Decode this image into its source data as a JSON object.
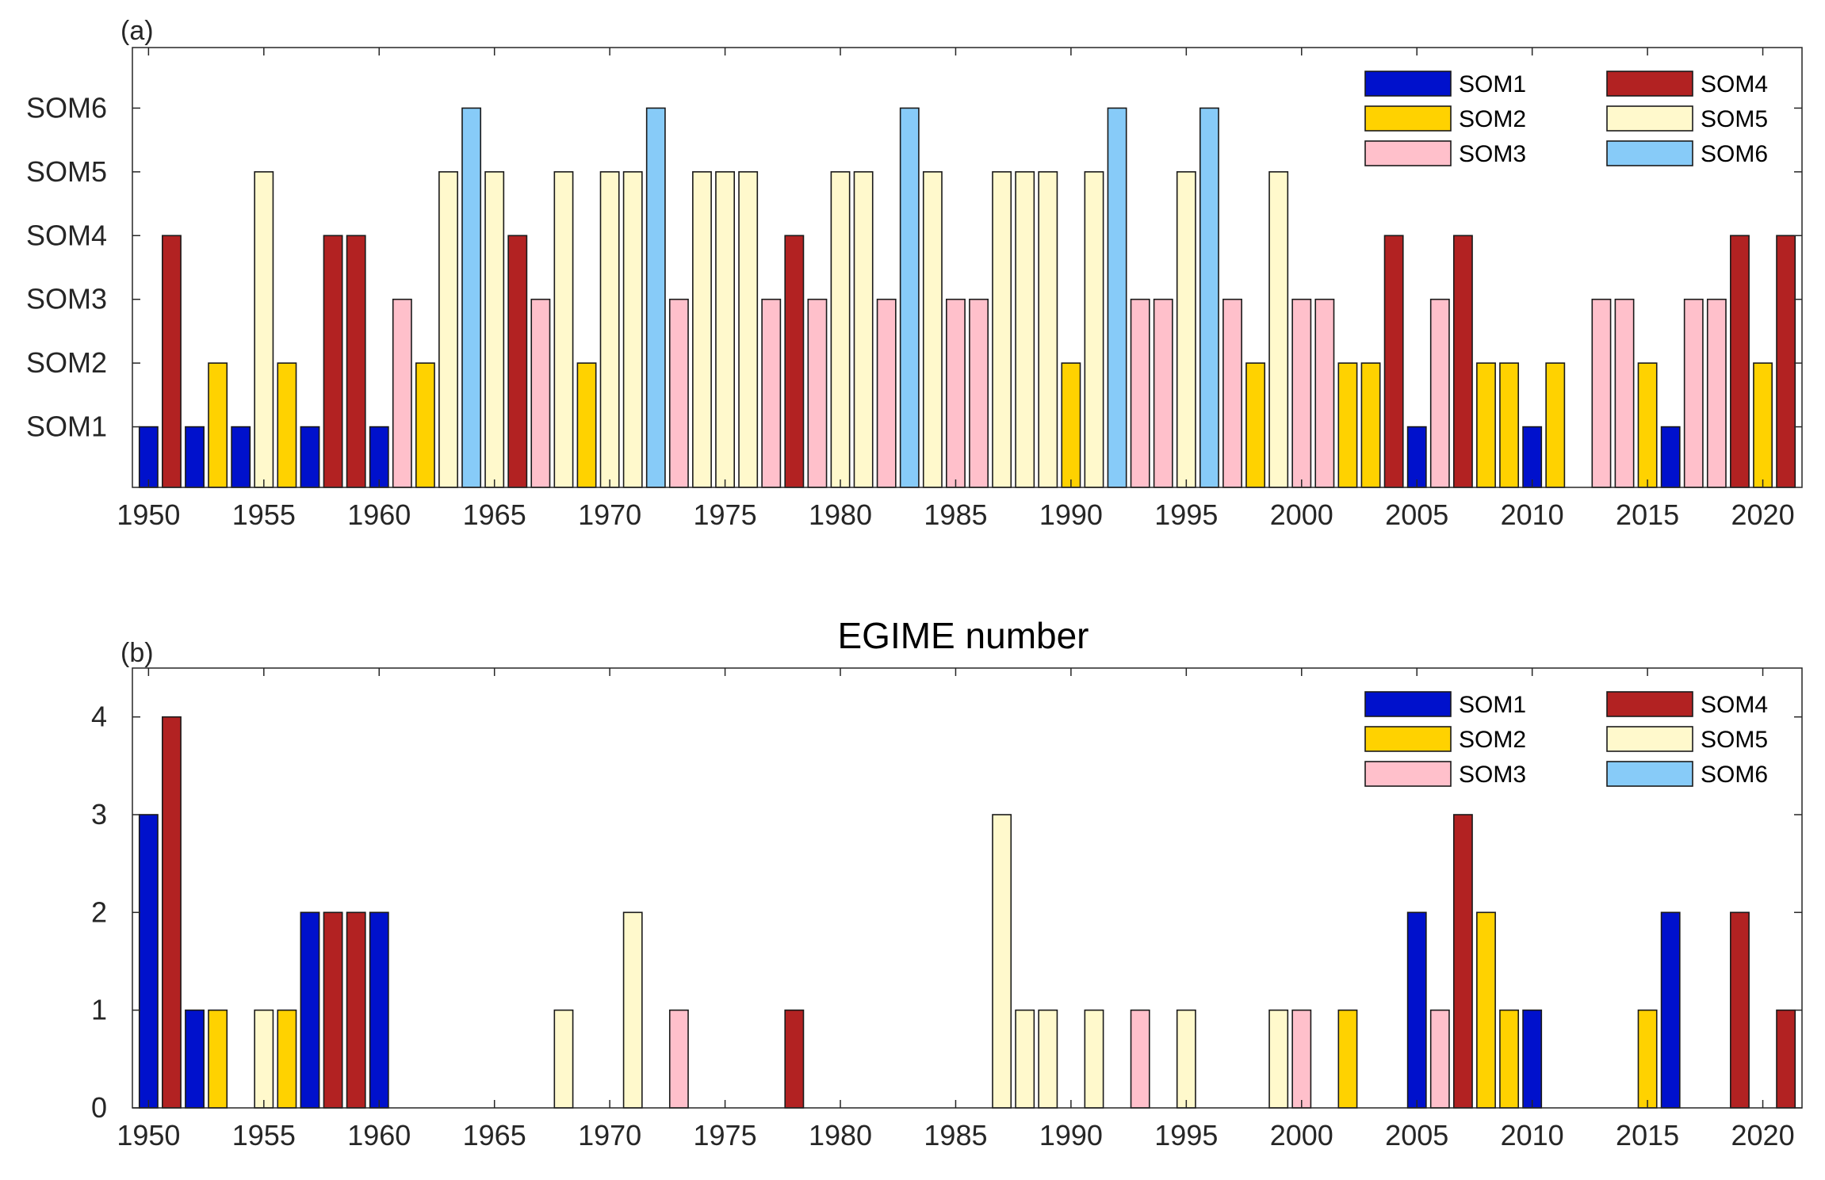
{
  "colors": {
    "SOM1": "#0011cc",
    "SOM2": "#ffd200",
    "SOM3": "#ffc0cb",
    "SOM4": "#b22222",
    "SOM5": "#fff9cc",
    "SOM6": "#87cbf8"
  },
  "chart_data": [
    {
      "type": "bar",
      "panel_label": "(a)",
      "title": "",
      "xlabel": "",
      "ylabel": "",
      "x_ticks": [
        "1950",
        "1955",
        "1960",
        "1965",
        "1970",
        "1975",
        "1980",
        "1985",
        "1990",
        "1995",
        "2000",
        "2005",
        "2010",
        "2015",
        "2020"
      ],
      "y_ticks": [
        "SOM1",
        "SOM2",
        "SOM3",
        "SOM4",
        "SOM5",
        "SOM6"
      ],
      "xlim": [
        1949.3,
        2021.7
      ],
      "ylim": [
        0.05,
        6.95
      ],
      "legend": [
        "SOM1",
        "SOM2",
        "SOM3",
        "SOM4",
        "SOM5",
        "SOM6"
      ],
      "legend_position": "top-right",
      "years": [
        1950,
        1951,
        1952,
        1953,
        1954,
        1955,
        1956,
        1957,
        1958,
        1959,
        1960,
        1961,
        1962,
        1963,
        1964,
        1965,
        1966,
        1967,
        1968,
        1969,
        1970,
        1971,
        1972,
        1973,
        1974,
        1975,
        1976,
        1977,
        1978,
        1979,
        1980,
        1981,
        1982,
        1983,
        1984,
        1985,
        1986,
        1987,
        1988,
        1989,
        1990,
        1991,
        1992,
        1993,
        1994,
        1995,
        1996,
        1997,
        1998,
        1999,
        2000,
        2001,
        2002,
        2003,
        2004,
        2005,
        2006,
        2007,
        2008,
        2009,
        2010,
        2011,
        2012,
        2013,
        2014,
        2015,
        2016,
        2017,
        2018,
        2019,
        2020,
        2021
      ],
      "som_class": [
        1,
        4,
        1,
        2,
        1,
        5,
        2,
        1,
        4,
        4,
        1,
        3,
        2,
        5,
        6,
        5,
        4,
        3,
        5,
        2,
        5,
        5,
        6,
        3,
        5,
        5,
        5,
        3,
        4,
        3,
        5,
        5,
        3,
        6,
        5,
        3,
        3,
        5,
        5,
        5,
        2,
        5,
        6,
        3,
        3,
        5,
        6,
        3,
        2,
        5,
        3,
        3,
        2,
        2,
        4,
        1,
        3,
        4,
        2,
        2,
        1,
        2,
        0,
        3,
        3,
        2,
        1,
        3,
        3,
        4,
        2,
        4
      ]
    },
    {
      "type": "bar",
      "panel_label": "(b)",
      "title": "EGIME number",
      "xlabel": "",
      "ylabel": "",
      "x_ticks": [
        "1950",
        "1955",
        "1960",
        "1965",
        "1970",
        "1975",
        "1980",
        "1985",
        "1990",
        "1995",
        "2000",
        "2005",
        "2010",
        "2015",
        "2020"
      ],
      "y_ticks": [
        "0",
        "1",
        "2",
        "3",
        "4"
      ],
      "xlim": [
        1949.3,
        2021.7
      ],
      "ylim": [
        0,
        4.5
      ],
      "legend": [
        "SOM1",
        "SOM2",
        "SOM3",
        "SOM4",
        "SOM5",
        "SOM6"
      ],
      "legend_position": "top-right",
      "years": [
        1950,
        1951,
        1952,
        1953,
        1954,
        1955,
        1956,
        1957,
        1958,
        1959,
        1960,
        1961,
        1962,
        1963,
        1964,
        1965,
        1966,
        1967,
        1968,
        1969,
        1970,
        1971,
        1972,
        1973,
        1974,
        1975,
        1976,
        1977,
        1978,
        1979,
        1980,
        1981,
        1982,
        1983,
        1984,
        1985,
        1986,
        1987,
        1988,
        1989,
        1990,
        1991,
        1992,
        1993,
        1994,
        1995,
        1996,
        1997,
        1998,
        1999,
        2000,
        2001,
        2002,
        2003,
        2004,
        2005,
        2006,
        2007,
        2008,
        2009,
        2010,
        2011,
        2012,
        2013,
        2014,
        2015,
        2016,
        2017,
        2018,
        2019,
        2020,
        2021
      ],
      "som_class": [
        1,
        4,
        1,
        2,
        1,
        5,
        2,
        1,
        4,
        4,
        1,
        3,
        2,
        5,
        6,
        5,
        4,
        3,
        5,
        2,
        5,
        5,
        6,
        3,
        5,
        5,
        5,
        3,
        4,
        3,
        5,
        5,
        3,
        6,
        5,
        3,
        3,
        5,
        5,
        5,
        2,
        5,
        6,
        3,
        3,
        5,
        6,
        3,
        2,
        5,
        3,
        3,
        2,
        2,
        4,
        1,
        3,
        4,
        2,
        2,
        1,
        2,
        0,
        3,
        3,
        2,
        1,
        3,
        3,
        4,
        2,
        4
      ],
      "values": [
        3,
        4,
        1,
        1,
        0,
        1,
        1,
        2,
        2,
        2,
        2,
        0,
        0,
        0,
        0,
        0,
        0,
        0,
        1,
        0,
        0,
        2,
        0,
        1,
        0,
        0,
        0,
        0,
        1,
        0,
        0,
        0,
        0,
        0,
        0,
        0,
        0,
        3,
        1,
        1,
        0,
        1,
        0,
        1,
        0,
        1,
        0,
        0,
        0,
        1,
        1,
        0,
        1,
        0,
        0,
        2,
        1,
        3,
        2,
        1,
        1,
        0,
        0,
        0,
        0,
        1,
        2,
        0,
        0,
        2,
        0,
        1
      ]
    }
  ]
}
